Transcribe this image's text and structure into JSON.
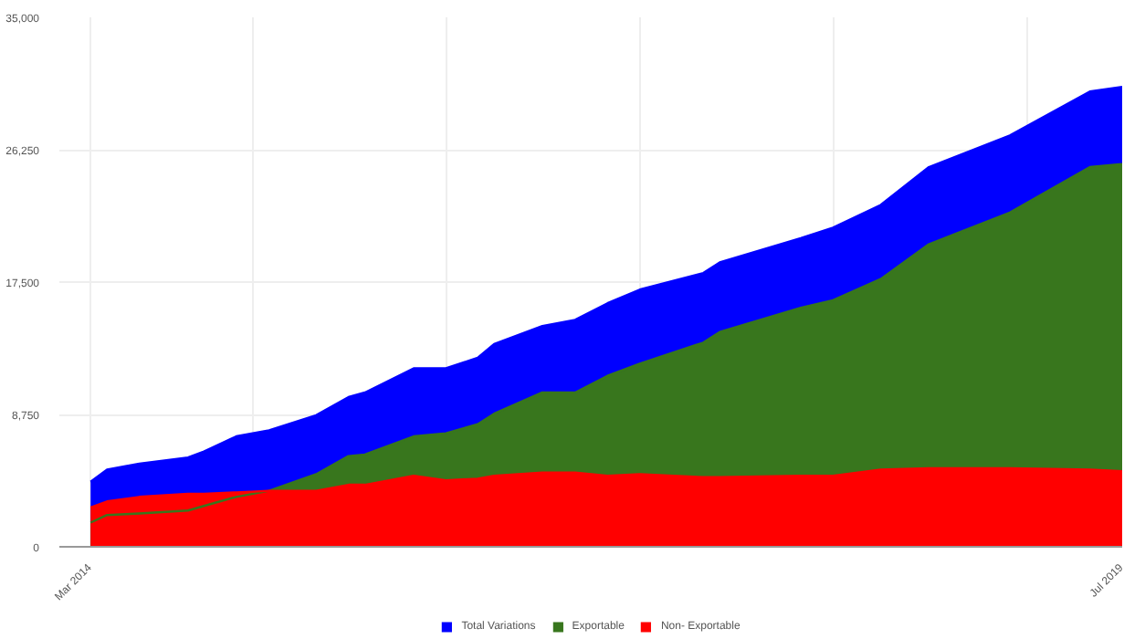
{
  "chart_data": {
    "type": "area",
    "x": [
      "2014-03",
      "2014-04",
      "2014-06",
      "2014-09",
      "2014-10",
      "2014-12",
      "2015-02",
      "2015-05",
      "2015-07",
      "2015-08",
      "2015-11",
      "2016-01",
      "2016-03",
      "2016-04",
      "2016-07",
      "2016-09",
      "2016-11",
      "2017-01",
      "2017-05",
      "2017-06",
      "2017-11",
      "2018-01",
      "2018-04",
      "2018-07",
      "2018-12",
      "2019-05",
      "2019-07"
    ],
    "series": [
      {
        "name": "Total Variations",
        "color": "#0000ff",
        "values": [
          4300,
          5100,
          5500,
          5900,
          6300,
          7300,
          7700,
          8700,
          9900,
          10200,
          11800,
          11800,
          12500,
          13400,
          14600,
          15000,
          16100,
          17000,
          18100,
          18800,
          20400,
          21100,
          22600,
          25100,
          27200,
          30100,
          30400
        ]
      },
      {
        "name": "Exportable",
        "color": "#38761d",
        "values": [
          1600,
          2100,
          2200,
          2400,
          2700,
          3300,
          3700,
          4800,
          6000,
          6100,
          7300,
          7500,
          8100,
          8800,
          10200,
          10200,
          11300,
          12100,
          13500,
          14200,
          15800,
          16300,
          17700,
          20000,
          22100,
          25100,
          25300
        ]
      },
      {
        "name": "Non- Exportable",
        "color": "#ff0000",
        "values": [
          2600,
          3000,
          3300,
          3500,
          3500,
          3600,
          3700,
          3700,
          4100,
          4100,
          4700,
          4400,
          4500,
          4700,
          4900,
          4900,
          4700,
          4800,
          4600,
          4600,
          4700,
          4700,
          5100,
          5200,
          5200,
          5100,
          5000
        ]
      }
    ],
    "xlim": [
      "2014-01",
      "2019-07"
    ],
    "xticks": [
      {
        "value": "2014-03",
        "label": "Mar 2014"
      },
      {
        "value": "2015-01",
        "label": null
      },
      {
        "value": "2016-01",
        "label": null
      },
      {
        "value": "2017-01",
        "label": null
      },
      {
        "value": "2018-01",
        "label": null
      },
      {
        "value": "2019-01",
        "label": null
      },
      {
        "value": "2019-07",
        "label": "Jul 2019"
      }
    ],
    "ylim": [
      0,
      35000
    ],
    "yticks": [
      0,
      {
        "value": 8750,
        "label": "8,750"
      },
      {
        "value": 17500,
        "label": "17,500"
      },
      {
        "value": 26250,
        "label": "26,250"
      },
      {
        "value": 35000,
        "label": "35,000"
      }
    ],
    "grid": true,
    "legend": "bottom"
  }
}
